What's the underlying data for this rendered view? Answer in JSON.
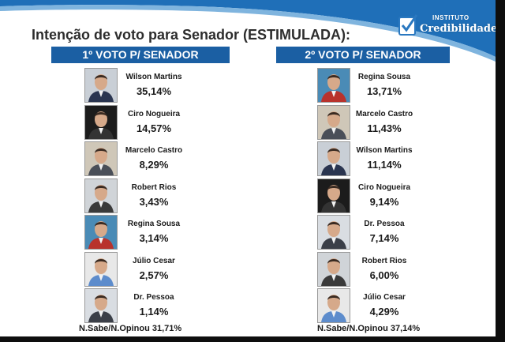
{
  "title": "Intenção de voto para Senador (ESTIMULADA):",
  "logo": {
    "small_text": "INSTITUTO",
    "big_text": "Credibilidade"
  },
  "colors": {
    "header_blue": "#1b5fa3",
    "swoosh_blue": "#1f6fb8",
    "text": "#1a1a1a"
  },
  "first_vote": {
    "header": "1º VOTO P/ SENADOR",
    "candidates": [
      {
        "name": "Wilson Martins",
        "percent": "35,14%"
      },
      {
        "name": "Ciro Nogueira",
        "percent": "14,57%"
      },
      {
        "name": "Marcelo Castro",
        "percent": "8,29%"
      },
      {
        "name": "Robert Rios",
        "percent": "3,43%"
      },
      {
        "name": "Regina Sousa",
        "percent": "3,14%"
      },
      {
        "name": "Júlio Cesar",
        "percent": "2,57%"
      },
      {
        "name": "Dr. Pessoa",
        "percent": "1,14%"
      }
    ],
    "footer": "N.Sabe/N.Opinou 31,71%"
  },
  "second_vote": {
    "header": "2º VOTO P/ SENADOR",
    "candidates": [
      {
        "name": "Regina Sousa",
        "percent": "13,71%"
      },
      {
        "name": "Marcelo Castro",
        "percent": "11,43%"
      },
      {
        "name": "Wilson Martins",
        "percent": "11,14%"
      },
      {
        "name": "Ciro Nogueira",
        "percent": "9,14%"
      },
      {
        "name": "Dr. Pessoa",
        "percent": "7,14%"
      },
      {
        "name": "Robert Rios",
        "percent": "6,00%"
      },
      {
        "name": "Júlio Cesar",
        "percent": "4,29%"
      }
    ],
    "footer": "N.Sabe/N.Opinou 37,14%"
  }
}
